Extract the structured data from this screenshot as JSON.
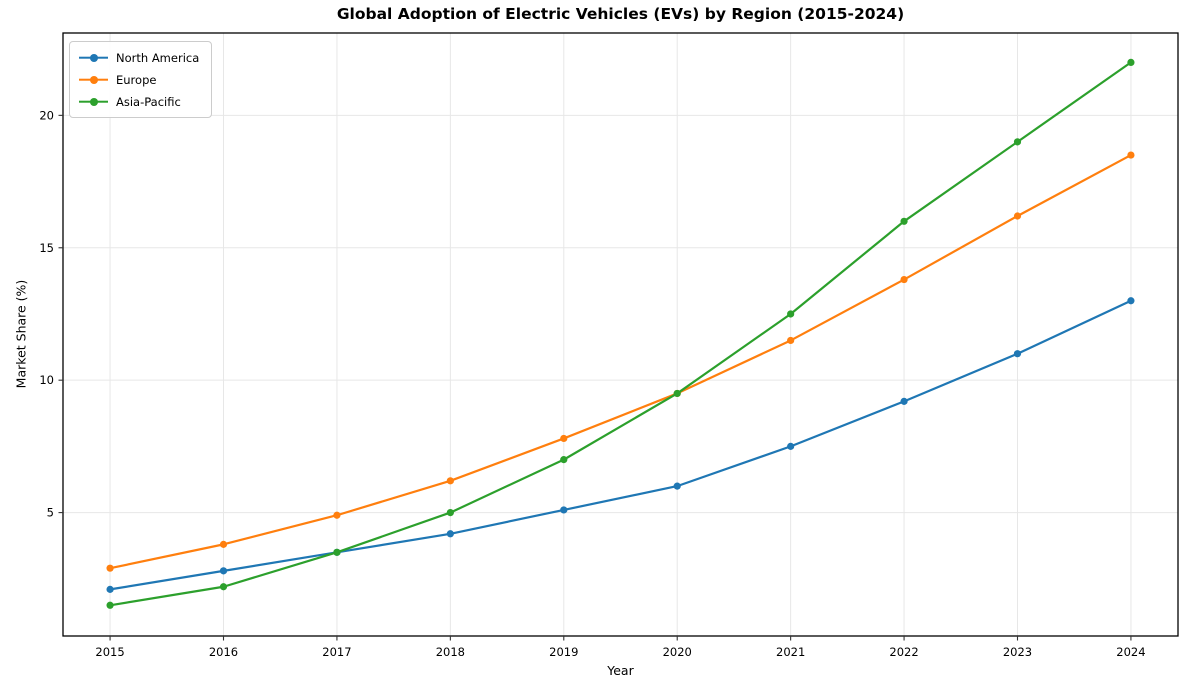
{
  "title": "Global Adoption of Electric Vehicles (EVs) by Region (2015-2024)",
  "chart_data": {
    "type": "line",
    "title": "Global Adoption of Electric Vehicles (EVs) by Region (2015-2024)",
    "xlabel": "Year",
    "ylabel": "Market Share (%)",
    "x": [
      2015,
      2016,
      2017,
      2018,
      2019,
      2020,
      2021,
      2022,
      2023,
      2024
    ],
    "series": [
      {
        "name": "North America",
        "color": "#1f77b4",
        "values": [
          2.1,
          2.8,
          3.5,
          4.2,
          5.1,
          6.0,
          7.5,
          9.2,
          11.0,
          13.0
        ]
      },
      {
        "name": "Europe",
        "color": "#ff7f0e",
        "values": [
          2.9,
          3.8,
          4.9,
          6.2,
          7.8,
          9.5,
          11.5,
          13.8,
          16.2,
          18.5
        ]
      },
      {
        "name": "Asia-Pacific",
        "color": "#2ca02c",
        "values": [
          1.5,
          2.2,
          3.5,
          5.0,
          7.0,
          9.5,
          12.5,
          16.0,
          19.0,
          22.0
        ]
      }
    ],
    "xlim": [
      2014.585,
      2024.415
    ],
    "ylim": [
      0.34,
      23.11
    ],
    "yticks": [
      5,
      10,
      15,
      20
    ],
    "xticks": [
      2015,
      2016,
      2017,
      2018,
      2019,
      2020,
      2021,
      2022,
      2023,
      2024
    ],
    "grid": true,
    "legend_position": "upper left"
  },
  "colors": {
    "background": "#ffffff",
    "grid": "#e7e7e7",
    "spine": "#000000",
    "tick": "#333333",
    "text": "#000000"
  }
}
